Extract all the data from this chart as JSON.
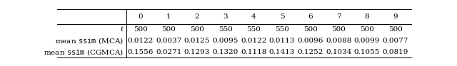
{
  "col_headers": [
    "0",
    "1",
    "2",
    "3",
    "4",
    "5",
    "6",
    "7",
    "8",
    "9"
  ],
  "row_labels": [
    "t",
    "mean ssim (MCA)",
    "mean ssim (CGMCA)"
  ],
  "row_label_styles": [
    "italic",
    "normal",
    "normal"
  ],
  "rows": [
    [
      "500",
      "500",
      "500",
      "550",
      "550",
      "550",
      "500",
      "500",
      "500",
      "500"
    ],
    [
      "0.0122",
      "0.0037",
      "0.0125",
      "0.0095",
      "0.0122",
      "0.0113",
      "0.0096",
      "0.0088",
      "0.0099",
      "0.0077"
    ],
    [
      "0.1556",
      "0.0271",
      "0.1293",
      "0.1320",
      "0.1118",
      "0.1413",
      "0.1252",
      "0.1034",
      "0.1055",
      "0.0819"
    ]
  ],
  "background_color": "#ffffff",
  "font_size": 7.5,
  "header_font_size": 7.5,
  "figsize": [
    6.4,
    0.93
  ],
  "dpi": 100
}
